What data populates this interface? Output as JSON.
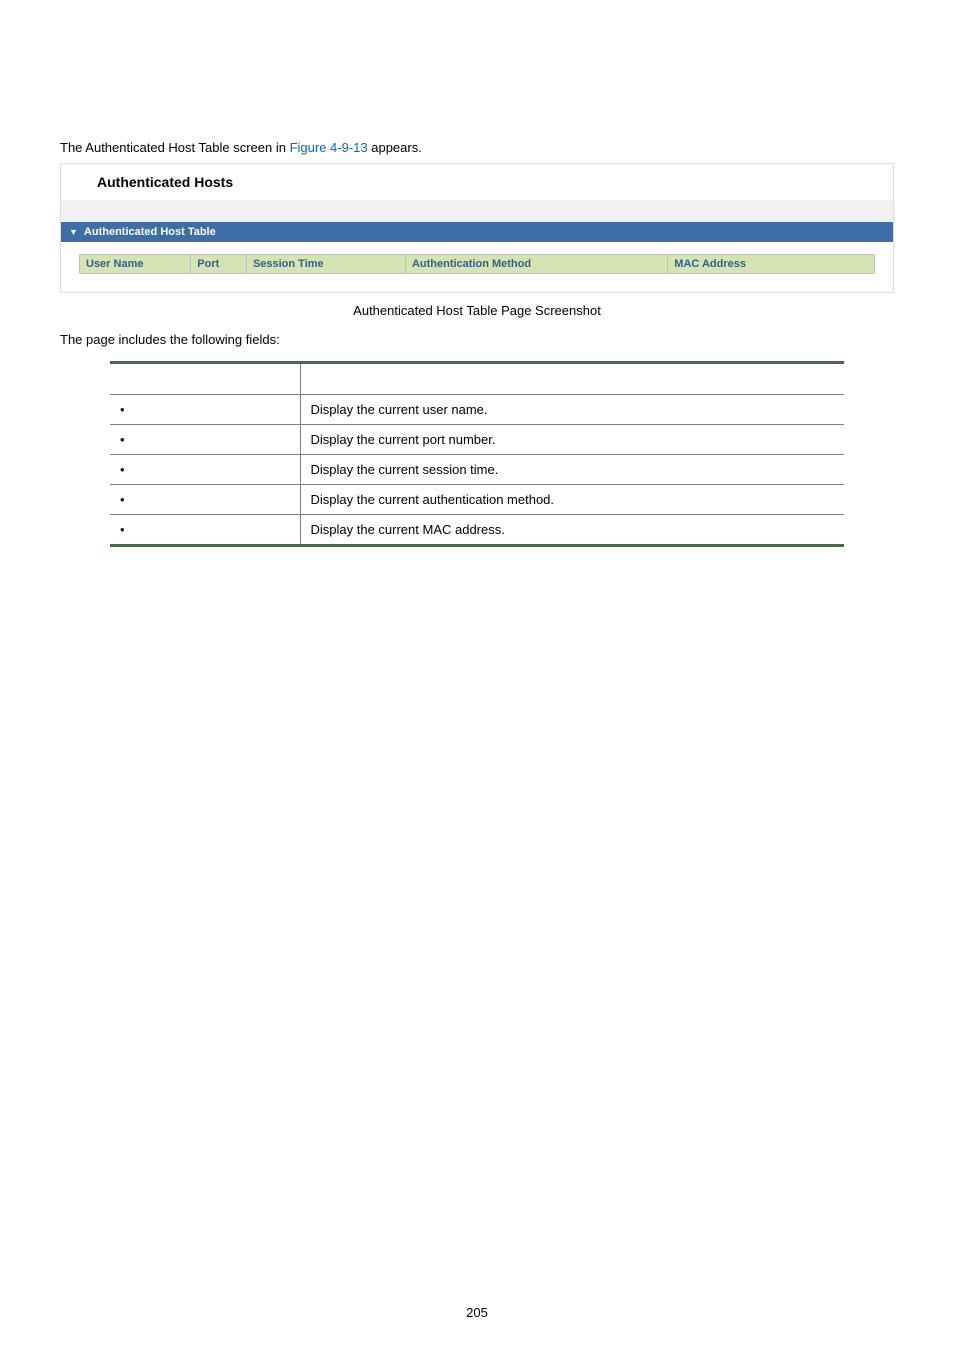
{
  "intro": {
    "prefix": "The Authenticated Host Table screen in ",
    "figure_ref": "Figure 4-9-13",
    "suffix": " appears."
  },
  "screenshot": {
    "title": "Authenticated Hosts",
    "section_bar_label": "Authenticated Host Table",
    "section_bar_bg": "#3d6ea5",
    "header_bg": "#d6e4b3",
    "header_text_color": "#355e8d",
    "columns": [
      {
        "label": "User Name",
        "width": "14%"
      },
      {
        "label": "Port",
        "width": "7%"
      },
      {
        "label": "Session Time",
        "width": "20%"
      },
      {
        "label": "Authentication Method",
        "width": "33%"
      },
      {
        "label": "MAC Address",
        "width": "26%"
      }
    ]
  },
  "caption": "Authenticated Host Table Page Screenshot",
  "fields_intro": "The page includes the following fields:",
  "desc_table": {
    "border_color": "#4a6b4a",
    "header": {
      "object": "",
      "description": ""
    },
    "rows": [
      {
        "object": "",
        "description": "Display the current user name."
      },
      {
        "object": "",
        "description": "Display the current port number."
      },
      {
        "object": "",
        "description": "Display the current session time."
      },
      {
        "object": "",
        "description": "Display the current authentication method."
      },
      {
        "object": "",
        "description": "Display the current MAC address."
      }
    ]
  },
  "page_number": "205"
}
